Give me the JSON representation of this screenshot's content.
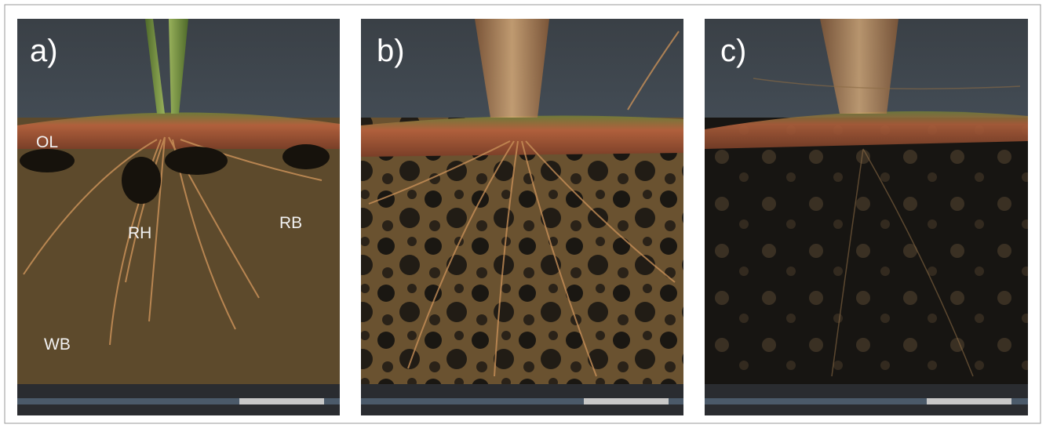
{
  "panels": [
    {
      "label": "a)",
      "annotations": [
        "OL",
        "RH",
        "RB",
        "WB"
      ]
    },
    {
      "label": "b)"
    },
    {
      "label": "c)"
    }
  ]
}
